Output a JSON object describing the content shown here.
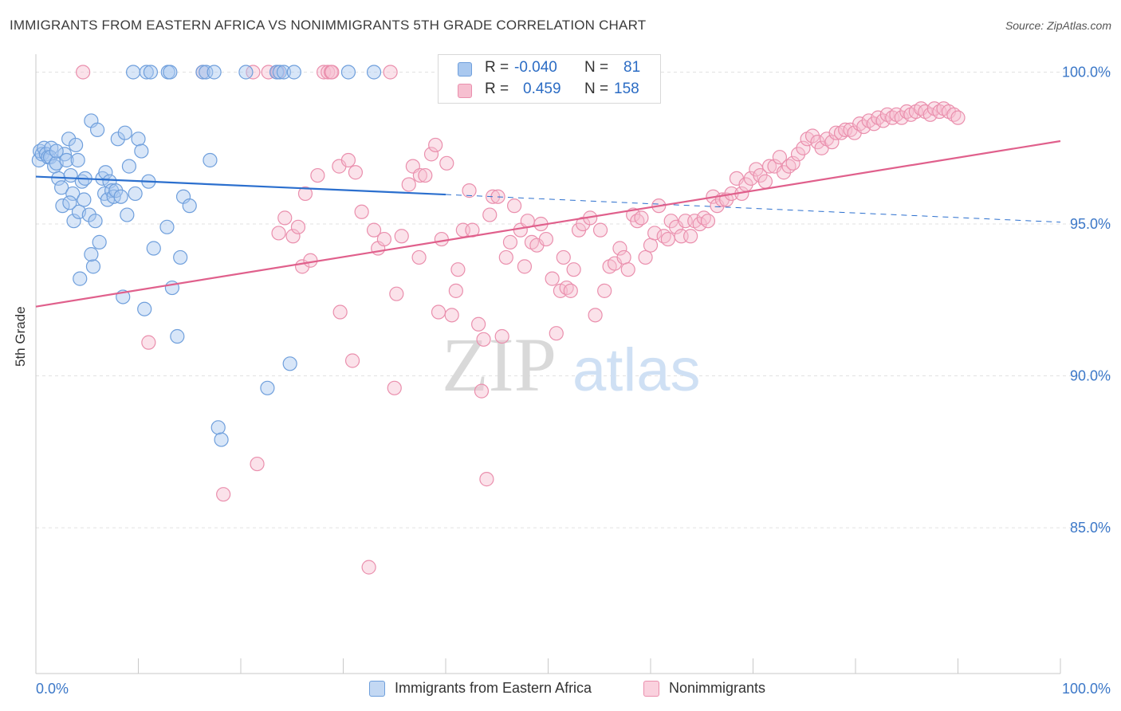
{
  "title": "IMMIGRANTS FROM EASTERN AFRICA VS NONIMMIGRANTS 5TH GRADE CORRELATION CHART",
  "source": "Source: ZipAtlas.com",
  "watermark": {
    "zip": "ZIP",
    "atlas": "atlas"
  },
  "colors": {
    "blue_fill": "#a9c8ef",
    "blue_stroke": "#6f9fdc",
    "blue_line": "#2b6fce",
    "pink_fill": "#f6bfd0",
    "pink_stroke": "#ea8fad",
    "pink_line": "#e0608c",
    "axis_text": "#3c78c8",
    "grid": "#e2e2e2"
  },
  "legend_top": [
    {
      "r_label": "R =",
      "r_value": "-0.040",
      "n_label": "N =",
      "n_value": "81",
      "color": "blue"
    },
    {
      "r_label": "R =",
      "r_value": "0.459",
      "n_label": "N =",
      "n_value": "158",
      "color": "pink"
    }
  ],
  "chart_data": {
    "type": "scatter",
    "title": "IMMIGRANTS FROM EASTERN AFRICA VS NONIMMIGRANTS 5TH GRADE CORRELATION CHART",
    "xlabel": "",
    "ylabel": "5th Grade",
    "xlim": [
      0,
      100
    ],
    "ylim": [
      80.2,
      100.8
    ],
    "x_tick_labels": [
      "0.0%",
      "100.0%"
    ],
    "y_ticks": [
      85,
      90,
      95,
      100
    ],
    "y_tick_labels": [
      "85.0%",
      "90.0%",
      "95.0%",
      "100.0%"
    ],
    "grid": true,
    "legend_position": "bottom",
    "series": [
      {
        "name": "Immigrants from Eastern Africa",
        "color": "blue",
        "trend": {
          "x0": 0,
          "y0": 96.56,
          "x1": 40,
          "y1": 95.97,
          "dash_to_x": 100,
          "dash_to_y": 95.06
        },
        "points": [
          [
            0.3,
            97.1
          ],
          [
            0.4,
            97.4
          ],
          [
            0.6,
            97.3
          ],
          [
            0.8,
            97.5
          ],
          [
            1.0,
            97.3
          ],
          [
            1.2,
            97.2
          ],
          [
            1.5,
            97.5
          ],
          [
            1.4,
            97.2
          ],
          [
            1.8,
            96.9
          ],
          [
            2.0,
            97.0
          ],
          [
            2.2,
            96.5
          ],
          [
            2.5,
            96.2
          ],
          [
            2.6,
            95.6
          ],
          [
            2.8,
            97.3
          ],
          [
            3.0,
            97.1
          ],
          [
            3.2,
            97.8
          ],
          [
            3.4,
            96.6
          ],
          [
            3.6,
            96.0
          ],
          [
            3.7,
            95.1
          ],
          [
            3.9,
            97.6
          ],
          [
            4.1,
            97.1
          ],
          [
            4.2,
            95.4
          ],
          [
            4.5,
            96.4
          ],
          [
            4.7,
            95.8
          ],
          [
            4.8,
            96.5
          ],
          [
            5.2,
            95.3
          ],
          [
            5.4,
            98.4
          ],
          [
            5.6,
            93.6
          ],
          [
            5.8,
            95.1
          ],
          [
            6.0,
            98.1
          ],
          [
            6.2,
            94.4
          ],
          [
            6.5,
            96.5
          ],
          [
            6.7,
            96.0
          ],
          [
            6.8,
            96.7
          ],
          [
            7.0,
            95.8
          ],
          [
            7.2,
            96.4
          ],
          [
            7.4,
            96.1
          ],
          [
            7.6,
            95.9
          ],
          [
            7.8,
            96.1
          ],
          [
            8.0,
            97.8
          ],
          [
            8.3,
            95.9
          ],
          [
            8.5,
            92.6
          ],
          [
            8.7,
            98.0
          ],
          [
            8.9,
            95.3
          ],
          [
            9.1,
            96.9
          ],
          [
            9.5,
            100.0
          ],
          [
            9.7,
            96.0
          ],
          [
            10.0,
            97.8
          ],
          [
            10.3,
            97.4
          ],
          [
            10.6,
            92.2
          ],
          [
            10.8,
            100.0
          ],
          [
            11.0,
            96.4
          ],
          [
            11.2,
            100.0
          ],
          [
            11.5,
            94.2
          ],
          [
            12.8,
            94.9
          ],
          [
            12.9,
            100.0
          ],
          [
            13.1,
            100.0
          ],
          [
            13.3,
            92.9
          ],
          [
            13.8,
            91.3
          ],
          [
            14.1,
            93.9
          ],
          [
            14.4,
            95.9
          ],
          [
            15.0,
            95.6
          ],
          [
            16.3,
            100.0
          ],
          [
            16.6,
            100.0
          ],
          [
            17.0,
            97.1
          ],
          [
            17.4,
            100.0
          ],
          [
            17.8,
            88.3
          ],
          [
            18.1,
            87.9
          ],
          [
            20.5,
            100.0
          ],
          [
            22.6,
            89.6
          ],
          [
            23.5,
            100.0
          ],
          [
            23.8,
            100.0
          ],
          [
            24.2,
            100.0
          ],
          [
            24.8,
            90.4
          ],
          [
            25.2,
            100.0
          ],
          [
            30.5,
            100.0
          ],
          [
            33.0,
            100.0
          ],
          [
            4.3,
            93.2
          ],
          [
            5.4,
            94.0
          ],
          [
            3.3,
            95.7
          ],
          [
            2.0,
            97.4
          ]
        ]
      },
      {
        "name": "Nonimmigrants",
        "color": "pink",
        "trend": {
          "x0": 0,
          "y0": 92.28,
          "x1": 100,
          "y1": 97.73
        },
        "points": [
          [
            4.6,
            100.0
          ],
          [
            11.0,
            91.1
          ],
          [
            16.3,
            100.0
          ],
          [
            18.3,
            86.1
          ],
          [
            21.2,
            100.0
          ],
          [
            21.6,
            87.1
          ],
          [
            22.7,
            100.0
          ],
          [
            23.6,
            100.0
          ],
          [
            23.7,
            94.7
          ],
          [
            24.3,
            95.2
          ],
          [
            25.1,
            94.6
          ],
          [
            25.6,
            94.9
          ],
          [
            26.0,
            93.6
          ],
          [
            26.3,
            96.0
          ],
          [
            26.8,
            93.8
          ],
          [
            27.5,
            96.6
          ],
          [
            28.1,
            100.0
          ],
          [
            28.5,
            100.0
          ],
          [
            28.8,
            100.0
          ],
          [
            28.9,
            100.0
          ],
          [
            29.6,
            96.9
          ],
          [
            29.7,
            92.1
          ],
          [
            30.5,
            97.1
          ],
          [
            30.9,
            90.5
          ],
          [
            31.2,
            96.7
          ],
          [
            31.8,
            95.4
          ],
          [
            32.5,
            83.7
          ],
          [
            33.0,
            94.8
          ],
          [
            33.4,
            94.2
          ],
          [
            34.0,
            94.5
          ],
          [
            34.6,
            100.0
          ],
          [
            35.0,
            89.6
          ],
          [
            35.2,
            92.7
          ],
          [
            35.7,
            94.6
          ],
          [
            36.4,
            96.3
          ],
          [
            36.8,
            96.9
          ],
          [
            37.4,
            93.9
          ],
          [
            37.5,
            96.6
          ],
          [
            38.0,
            96.6
          ],
          [
            38.6,
            97.3
          ],
          [
            39.0,
            97.6
          ],
          [
            39.3,
            92.1
          ],
          [
            39.6,
            94.5
          ],
          [
            40.1,
            97.0
          ],
          [
            40.6,
            92.0
          ],
          [
            41.0,
            92.8
          ],
          [
            41.2,
            93.5
          ],
          [
            41.7,
            94.8
          ],
          [
            42.3,
            96.1
          ],
          [
            42.6,
            94.8
          ],
          [
            43.2,
            91.7
          ],
          [
            43.5,
            89.5
          ],
          [
            43.7,
            91.2
          ],
          [
            44.0,
            86.6
          ],
          [
            44.3,
            95.3
          ],
          [
            44.6,
            95.9
          ],
          [
            45.1,
            95.9
          ],
          [
            45.5,
            91.3
          ],
          [
            45.9,
            93.9
          ],
          [
            46.3,
            94.4
          ],
          [
            46.7,
            95.6
          ],
          [
            47.3,
            94.8
          ],
          [
            47.7,
            93.6
          ],
          [
            48.0,
            95.1
          ],
          [
            48.4,
            94.4
          ],
          [
            48.9,
            94.3
          ],
          [
            49.3,
            95.0
          ],
          [
            49.8,
            94.5
          ],
          [
            50.4,
            93.2
          ],
          [
            50.8,
            91.4
          ],
          [
            51.2,
            92.8
          ],
          [
            51.5,
            93.9
          ],
          [
            51.8,
            92.9
          ],
          [
            52.2,
            92.8
          ],
          [
            52.5,
            93.5
          ],
          [
            53.0,
            94.8
          ],
          [
            53.4,
            95.0
          ],
          [
            54.1,
            95.2
          ],
          [
            54.6,
            92.0
          ],
          [
            55.1,
            94.8
          ],
          [
            55.5,
            92.8
          ],
          [
            56.0,
            93.6
          ],
          [
            56.5,
            93.7
          ],
          [
            57.0,
            94.2
          ],
          [
            57.4,
            93.9
          ],
          [
            57.8,
            93.5
          ],
          [
            58.3,
            95.3
          ],
          [
            58.7,
            95.1
          ],
          [
            59.1,
            95.2
          ],
          [
            59.5,
            93.9
          ],
          [
            60.0,
            94.3
          ],
          [
            60.4,
            94.7
          ],
          [
            60.8,
            95.6
          ],
          [
            61.3,
            94.6
          ],
          [
            61.7,
            94.5
          ],
          [
            62.0,
            95.1
          ],
          [
            62.5,
            94.9
          ],
          [
            63.0,
            94.6
          ],
          [
            63.4,
            95.1
          ],
          [
            63.9,
            94.6
          ],
          [
            64.3,
            95.1
          ],
          [
            64.8,
            95.0
          ],
          [
            65.2,
            95.2
          ],
          [
            65.6,
            95.1
          ],
          [
            66.1,
            95.9
          ],
          [
            66.5,
            95.6
          ],
          [
            67.0,
            95.8
          ],
          [
            67.4,
            95.8
          ],
          [
            67.9,
            96.0
          ],
          [
            68.4,
            96.5
          ],
          [
            68.9,
            96.0
          ],
          [
            69.3,
            96.3
          ],
          [
            69.8,
            96.5
          ],
          [
            70.3,
            96.8
          ],
          [
            70.7,
            96.6
          ],
          [
            71.2,
            96.4
          ],
          [
            71.6,
            96.9
          ],
          [
            72.1,
            96.9
          ],
          [
            72.6,
            97.2
          ],
          [
            73.0,
            96.7
          ],
          [
            73.5,
            96.9
          ],
          [
            73.9,
            97.0
          ],
          [
            74.4,
            97.3
          ],
          [
            74.9,
            97.5
          ],
          [
            75.3,
            97.8
          ],
          [
            75.8,
            97.9
          ],
          [
            76.3,
            97.7
          ],
          [
            76.7,
            97.5
          ],
          [
            77.2,
            97.8
          ],
          [
            77.7,
            97.7
          ],
          [
            78.1,
            98.0
          ],
          [
            78.6,
            98.0
          ],
          [
            79.0,
            98.1
          ],
          [
            79.5,
            98.1
          ],
          [
            79.9,
            98.0
          ],
          [
            80.4,
            98.3
          ],
          [
            80.8,
            98.2
          ],
          [
            81.3,
            98.4
          ],
          [
            81.8,
            98.3
          ],
          [
            82.2,
            98.5
          ],
          [
            82.7,
            98.4
          ],
          [
            83.1,
            98.6
          ],
          [
            83.6,
            98.5
          ],
          [
            84.0,
            98.6
          ],
          [
            84.5,
            98.5
          ],
          [
            85.0,
            98.7
          ],
          [
            85.4,
            98.6
          ],
          [
            85.9,
            98.7
          ],
          [
            86.4,
            98.8
          ],
          [
            86.8,
            98.7
          ],
          [
            87.3,
            98.6
          ],
          [
            87.7,
            98.8
          ],
          [
            88.2,
            98.7
          ],
          [
            88.6,
            98.8
          ],
          [
            89.1,
            98.7
          ],
          [
            89.6,
            98.6
          ],
          [
            90.0,
            98.5
          ]
        ]
      }
    ]
  }
}
